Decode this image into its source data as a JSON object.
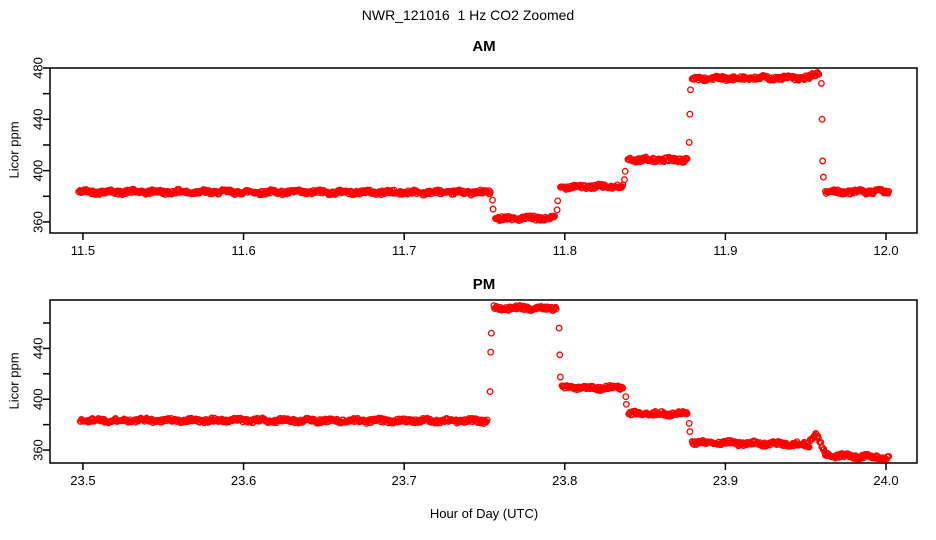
{
  "title": "NWR_121016  1 Hz CO2 Zoomed",
  "xlabel": "Hour of Day (UTC)",
  "point_style": {
    "color": "#FF0000",
    "shape": "open-circle"
  },
  "axis_color": "#000000",
  "chart_data": [
    {
      "type": "scatter",
      "panel": "AM",
      "title": "AM",
      "ylabel": "Licor ppm",
      "xlim": [
        11.4795,
        12.0193
      ],
      "ylim": [
        351.4,
        480.0
      ],
      "xticks": [
        11.5,
        11.6,
        11.7,
        11.8,
        11.9,
        12.0
      ],
      "xtick_labels": [
        "11.5",
        "11.6",
        "11.7",
        "11.8",
        "11.9",
        "12.0"
      ],
      "yticks": [
        360,
        380,
        400,
        420,
        440,
        460,
        480
      ],
      "ytick_labeled": [
        360,
        400,
        440,
        480
      ],
      "segments_format": "[x_start, x_end, value_start, value_end] in hours / ppm",
      "segments": [
        [
          11.497,
          11.754,
          383.5,
          383.0
        ],
        [
          11.7565,
          11.794,
          362.8,
          362.8
        ],
        [
          11.797,
          11.8365,
          387.5,
          387.5
        ],
        [
          11.839,
          11.8765,
          408.5,
          408.5
        ],
        [
          11.879,
          11.9525,
          471.8,
          472.3
        ],
        [
          11.9525,
          11.9585,
          472.8,
          476.0
        ],
        [
          11.962,
          12.002,
          383.5,
          383.5
        ]
      ],
      "transition_points": [
        {
          "x": 11.755,
          "values": [
            377.0,
            370.0
          ]
        },
        {
          "x": 11.7952,
          "values": [
            369.5,
            376.5
          ]
        },
        {
          "x": 11.8372,
          "values": [
            393.0,
            399.5
          ]
        },
        {
          "x": 11.8775,
          "values": [
            422.0,
            444.0,
            463.0
          ]
        },
        {
          "x": 11.9598,
          "values": [
            468.0,
            440.0,
            407.5,
            395.0
          ]
        }
      ]
    },
    {
      "type": "scatter",
      "panel": "PM",
      "title": "PM",
      "ylabel": "Licor ppm",
      "xlim": [
        23.4795,
        24.0193
      ],
      "ylim": [
        349.8,
        478.1
      ],
      "xticks": [
        23.5,
        23.6,
        23.7,
        23.8,
        23.9,
        24.0
      ],
      "xtick_labels": [
        "23.5",
        "23.6",
        "23.7",
        "23.8",
        "23.9",
        "24.0"
      ],
      "yticks": [
        360,
        380,
        400,
        420,
        440,
        460
      ],
      "ytick_labeled": [
        360,
        400,
        440
      ],
      "segments_format": "[x_start, x_end, value_start, value_end] in hours / ppm",
      "segments": [
        [
          23.498,
          23.752,
          383.5,
          383.0
        ],
        [
          23.7555,
          23.795,
          471.8,
          471.8
        ],
        [
          23.798,
          23.8365,
          409.0,
          409.0
        ],
        [
          23.8395,
          23.8765,
          388.5,
          388.5
        ],
        [
          23.879,
          23.9525,
          366.0,
          364.5
        ],
        [
          23.9525,
          23.9565,
          367.0,
          374.5
        ],
        [
          23.9565,
          23.962,
          373.0,
          357.0
        ],
        [
          23.962,
          24.002,
          356.0,
          354.0
        ]
      ],
      "transition_points": [
        {
          "x": 23.7535,
          "values": [
            406.0,
            437.0,
            452.0
          ]
        },
        {
          "x": 23.7965,
          "values": [
            456.0,
            435.0,
            417.5
          ]
        },
        {
          "x": 23.838,
          "values": [
            402.0,
            396.0
          ]
        },
        {
          "x": 23.8775,
          "values": [
            381.0,
            374.5
          ]
        }
      ]
    }
  ]
}
